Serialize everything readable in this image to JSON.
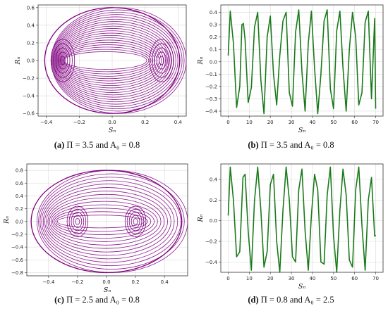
{
  "figure": {
    "panels": [
      {
        "id": "a",
        "caption_tag": "(a)",
        "caption_text": "Π = 3.5  and  A₀ = 0.8",
        "chart_data": {
          "type": "line",
          "xlabel": "Sₙ",
          "ylabel": "Rₙ",
          "xlim": [
            -0.45,
            0.45
          ],
          "ylim": [
            -0.63,
            0.63
          ],
          "xticks": [
            -0.4,
            -0.2,
            0.0,
            0.2,
            0.4
          ],
          "xtick_labels": [
            "−0.4",
            "−0.2",
            "0.0",
            "0.2",
            "0.4"
          ],
          "yticks": [
            -0.6,
            -0.4,
            -0.2,
            0.0,
            0.2,
            0.4,
            0.6
          ],
          "ytick_labels": [
            "−0.6",
            "−0.4",
            "−0.2",
            "0.0",
            "0.2",
            "0.4",
            "0.6"
          ],
          "grid": true,
          "series": [
            {
              "color": "#800080",
              "kind": "phase_portrait",
              "outer_radius": [
                0.41,
                0.6
              ],
              "inner_radius": [
                0.25,
                0.1
              ],
              "side_foci": [
                -0.3,
                0.3
              ],
              "loops": 20
            }
          ]
        }
      },
      {
        "id": "b",
        "caption_tag": "(b)",
        "caption_text": "Π = 3.5  and  A₀ = 0.8",
        "chart_data": {
          "type": "line",
          "xlabel": "Sₙ",
          "ylabel": "Rₙ",
          "xlim": [
            -3.5,
            73.5
          ],
          "ylim": [
            -0.44,
            0.46
          ],
          "xticks": [
            0,
            10,
            20,
            30,
            40,
            50,
            60,
            70
          ],
          "xtick_labels": [
            "0",
            "10",
            "20",
            "30",
            "40",
            "50",
            "60",
            "70"
          ],
          "yticks": [
            -0.4,
            -0.3,
            -0.2,
            -0.1,
            0.0,
            0.1,
            0.2,
            0.3,
            0.4
          ],
          "ytick_labels": [
            "−0.4",
            "−0.3",
            "−0.2",
            "−0.1",
            "0.0",
            "0.1",
            "0.2",
            "0.3",
            "0.4"
          ],
          "grid": true,
          "series": [
            {
              "color": "#1a7a1a",
              "x": [
                0,
                1,
                2.5,
                4,
                5.5,
                6.5,
                7.2,
                8,
                9.5,
                11,
                12.5,
                14,
                15.5,
                17,
                18.5,
                20,
                21.5,
                23,
                24.5,
                26,
                27.5,
                29,
                30.5,
                32,
                33.5,
                35,
                36.5,
                38,
                39.5,
                41,
                42.5,
                44,
                45.5,
                47,
                48.5,
                50,
                51.5,
                53,
                54.5,
                56,
                57.5,
                59,
                60.5,
                62,
                63.5,
                65,
                66.5,
                68,
                69.5,
                70
              ],
              "y": [
                0.05,
                0.41,
                0.15,
                -0.37,
                -0.2,
                0.3,
                0.31,
                0.18,
                -0.33,
                -0.21,
                0.28,
                0.4,
                -0.15,
                -0.42,
                0.2,
                0.37,
                -0.1,
                -0.35,
                0.05,
                0.33,
                0.4,
                -0.25,
                -0.36,
                0.24,
                0.42,
                -0.08,
                -0.4,
                0.15,
                0.41,
                -0.05,
                -0.42,
                -0.1,
                0.33,
                0.42,
                -0.22,
                -0.38,
                0.25,
                0.41,
                -0.05,
                -0.4,
                0.1,
                0.4,
                0.2,
                -0.35,
                -0.25,
                0.32,
                0.41,
                -0.3,
                0.35,
                -0.38
              ]
            }
          ]
        }
      },
      {
        "id": "c",
        "caption_tag": "(c)",
        "caption_text": "Π = 2.5  and  A₀ = 0.8",
        "chart_data": {
          "type": "line",
          "xlabel": "Sₙ",
          "ylabel": "Rₙ",
          "xlim": [
            -0.55,
            0.56
          ],
          "ylim": [
            -0.85,
            0.9
          ],
          "xticks": [
            -0.4,
            -0.2,
            0.0,
            0.2,
            0.4
          ],
          "xtick_labels": [
            "−0.4",
            "−0.2",
            "0.0",
            "0.2",
            "0.4"
          ],
          "yticks": [
            -0.8,
            -0.6,
            -0.4,
            -0.2,
            0.0,
            0.2,
            0.4,
            0.6,
            0.8
          ],
          "ytick_labels": [
            "−0.8",
            "−0.6",
            "−0.4",
            "−0.2",
            "0.0",
            "0.2",
            "0.4",
            "0.6",
            "0.8"
          ],
          "grid": true,
          "series": [
            {
              "color": "#800080",
              "kind": "phase_portrait",
              "outer_radius": [
                0.52,
                0.8
              ],
              "inner_radius": [
                0.3,
                0.1
              ],
              "side_foci": [
                -0.2,
                0.2
              ],
              "loops": 14
            }
          ]
        }
      },
      {
        "id": "d",
        "caption_tag": "(d)",
        "caption_text": "Π = 0.8  and  A₀ = 2.5",
        "chart_data": {
          "type": "line",
          "xlabel": "Sₙ",
          "ylabel": "Rₙ",
          "xlim": [
            -3.5,
            73.5
          ],
          "ylim": [
            -0.5,
            0.55
          ],
          "xticks": [
            0,
            10,
            20,
            30,
            40,
            50,
            60,
            70
          ],
          "xtick_labels": [
            "0",
            "10",
            "20",
            "30",
            "40",
            "50",
            "60",
            "70"
          ],
          "yticks": [
            -0.4,
            -0.2,
            0.0,
            0.2,
            0.4
          ],
          "ytick_labels": [
            "−0.4",
            "−0.2",
            "0.0",
            "0.2",
            "0.4"
          ],
          "grid": true,
          "series": [
            {
              "color": "#1a7a1a",
              "x": [
                0,
                1,
                2.5,
                4,
                5.5,
                7,
                8,
                9.5,
                11,
                12.5,
                14,
                15.5,
                17,
                18.5,
                20,
                21.5,
                23,
                24.5,
                26,
                27.5,
                29,
                30.5,
                32,
                33.5,
                35,
                36.5,
                38,
                39.5,
                41,
                42.5,
                44,
                45.5,
                47,
                48.5,
                50,
                51.5,
                53,
                54.5,
                56,
                57.5,
                59,
                60.5,
                62,
                63.5,
                65,
                66.5,
                68,
                69.5,
                70
              ],
              "y": [
                0.05,
                0.52,
                0.2,
                -0.35,
                -0.3,
                0.42,
                0.45,
                -0.1,
                -0.48,
                0.2,
                0.52,
                0.1,
                -0.45,
                -0.3,
                0.35,
                0.45,
                -0.2,
                -0.5,
                0.1,
                0.52,
                0.2,
                -0.35,
                -0.4,
                0.3,
                0.5,
                -0.1,
                -0.48,
                0.05,
                0.45,
                0.3,
                -0.4,
                -0.42,
                0.25,
                0.52,
                -0.15,
                -0.5,
                0.1,
                0.5,
                0.25,
                -0.38,
                -0.45,
                0.3,
                0.52,
                -0.05,
                -0.48,
                0.2,
                0.42,
                -0.15,
                -0.14
              ]
            }
          ]
        }
      }
    ]
  }
}
